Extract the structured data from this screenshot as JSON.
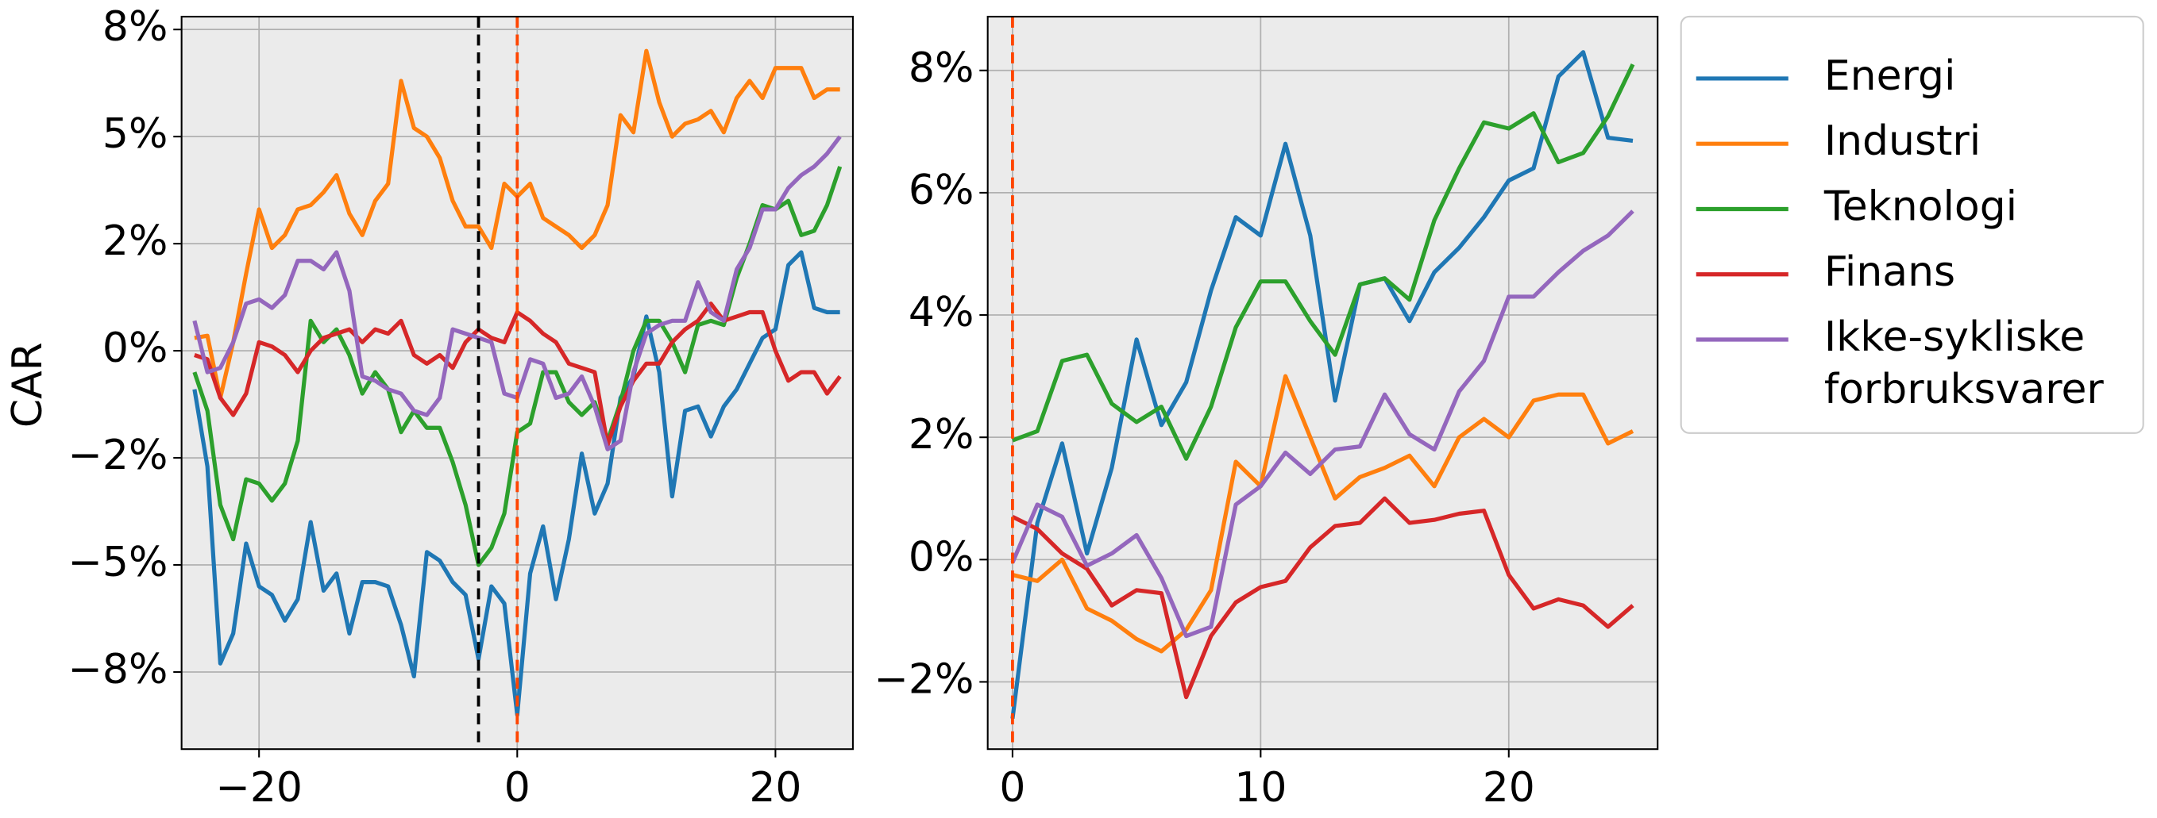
{
  "chart_data": [
    {
      "type": "line",
      "ylabel": "CAR",
      "x": [
        -25,
        -24,
        -23,
        -22,
        -21,
        -20,
        -19,
        -18,
        -17,
        -16,
        -15,
        -14,
        -13,
        -12,
        -11,
        -10,
        -9,
        -8,
        -7,
        -6,
        -5,
        -4,
        -3,
        -2,
        -1,
        0,
        1,
        2,
        3,
        4,
        5,
        6,
        7,
        8,
        9,
        10,
        11,
        12,
        13,
        14,
        15,
        16,
        17,
        18,
        19,
        20,
        21,
        22,
        23,
        24,
        25
      ],
      "series": [
        {
          "color": "#1f77b4",
          "values": [
            -0.9,
            -2.7,
            -7.3,
            -6.6,
            -4.5,
            -5.5,
            -5.7,
            -6.3,
            -5.8,
            -4.0,
            -5.6,
            -5.2,
            -6.6,
            -5.4,
            -5.4,
            -5.5,
            -6.4,
            -7.6,
            -4.7,
            -4.9,
            -5.4,
            -5.7,
            -7.2,
            -5.5,
            -5.9,
            -8.5,
            -5.2,
            -4.1,
            -5.8,
            -4.4,
            -2.4,
            -3.8,
            -3.1,
            -1.1,
            -0.6,
            0.8,
            -0.5,
            -3.4,
            -1.4,
            -1.3,
            -2.0,
            -1.3,
            -0.9,
            -0.3,
            0.3,
            0.5,
            2.0,
            2.3,
            1.0,
            0.9,
            0.9
          ]
        },
        {
          "color": "#ff7f0e",
          "values": [
            0.3,
            0.35,
            -1.1,
            0.2,
            1.8,
            3.3,
            2.4,
            2.7,
            3.3,
            3.4,
            3.7,
            4.1,
            3.2,
            2.7,
            3.5,
            3.9,
            6.3,
            5.2,
            5.0,
            4.5,
            3.5,
            2.9,
            2.9,
            2.4,
            3.9,
            3.6,
            3.9,
            3.1,
            2.9,
            2.7,
            2.4,
            2.7,
            3.4,
            5.5,
            5.1,
            7.0,
            5.8,
            5.0,
            5.3,
            5.4,
            5.6,
            5.1,
            5.9,
            6.3,
            5.9,
            6.6,
            6.6,
            6.6,
            5.9,
            6.1,
            6.1
          ]
        },
        {
          "color": "#2ca02c",
          "values": [
            -0.5,
            -1.4,
            -3.6,
            -4.4,
            -3.0,
            -3.1,
            -3.5,
            -3.1,
            -2.1,
            0.7,
            0.2,
            0.5,
            -0.1,
            -1.0,
            -0.5,
            -0.9,
            -1.9,
            -1.4,
            -1.8,
            -1.8,
            -2.6,
            -3.6,
            -5.0,
            -4.6,
            -3.8,
            -1.9,
            -1.7,
            -0.5,
            -0.5,
            -1.2,
            -1.5,
            -1.2,
            -2.1,
            -1.2,
            0.0,
            0.7,
            0.7,
            0.2,
            -0.5,
            0.6,
            0.7,
            0.6,
            1.7,
            2.5,
            3.4,
            3.3,
            3.5,
            2.7,
            2.8,
            3.4,
            4.3
          ]
        },
        {
          "color": "#d62728",
          "values": [
            -0.1,
            -0.2,
            -1.1,
            -1.5,
            -1.0,
            0.2,
            0.1,
            -0.1,
            -0.5,
            0.0,
            0.3,
            0.4,
            0.5,
            0.2,
            0.5,
            0.4,
            0.7,
            -0.1,
            -0.3,
            -0.1,
            -0.4,
            0.2,
            0.5,
            0.3,
            0.2,
            0.9,
            0.7,
            0.4,
            0.2,
            -0.3,
            -0.4,
            -0.5,
            -2.2,
            -1.3,
            -0.7,
            -0.3,
            -0.3,
            0.2,
            0.5,
            0.7,
            1.1,
            0.7,
            0.8,
            0.9,
            0.9,
            0.0,
            -0.7,
            -0.5,
            -0.5,
            -1.0,
            -0.6
          ]
        },
        {
          "color": "#9467bd",
          "values": [
            0.7,
            -0.5,
            -0.4,
            0.2,
            1.1,
            1.2,
            1.0,
            1.3,
            2.1,
            2.1,
            1.9,
            2.3,
            1.4,
            -0.6,
            -0.7,
            -0.9,
            -1.0,
            -1.4,
            -1.5,
            -1.1,
            0.5,
            0.4,
            0.3,
            0.2,
            -1.0,
            -1.1,
            -0.2,
            -0.3,
            -1.1,
            -1.0,
            -0.6,
            -1.3,
            -2.3,
            -2.1,
            -0.5,
            0.4,
            0.6,
            0.7,
            0.7,
            1.6,
            0.9,
            0.7,
            1.9,
            2.4,
            3.3,
            3.3,
            3.8,
            4.1,
            4.3,
            4.6,
            5.0
          ]
        }
      ],
      "vlines": [
        {
          "x": -3,
          "color": "#000000"
        },
        {
          "x": 0,
          "color": "#ff4500"
        }
      ],
      "line_style": "dashed",
      "xlim": [
        -26,
        26
      ],
      "xticks": [
        {
          "value": -20,
          "label": "−20"
        },
        0,
        20
      ],
      "ylim": [
        -9.3,
        7.8
      ],
      "yticks": [
        {
          "value": -7.5,
          "label": "−8%"
        },
        {
          "value": -5,
          "label": "−5%"
        },
        {
          "value": -2.5,
          "label": "−2%"
        },
        {
          "value": 0,
          "label": "0%"
        },
        {
          "value": 2.5,
          "label": "2%"
        },
        {
          "value": 5,
          "label": "5%"
        },
        {
          "value": 7.5,
          "label": "8%"
        }
      ],
      "grid": true
    },
    {
      "type": "line",
      "legend": "outside right",
      "x": [
        0,
        1,
        2,
        3,
        4,
        5,
        6,
        7,
        8,
        9,
        10,
        11,
        12,
        13,
        14,
        15,
        16,
        17,
        18,
        19,
        20,
        21,
        22,
        23,
        24,
        25
      ],
      "series": [
        {
          "name": "Energi",
          "color": "#1f77b4",
          "values": [
            -2.6,
            0.6,
            1.9,
            0.1,
            1.5,
            3.6,
            2.2,
            2.9,
            4.4,
            5.6,
            5.3,
            6.8,
            5.3,
            2.6,
            4.5,
            4.6,
            3.9,
            4.7,
            5.1,
            5.6,
            6.2,
            6.4,
            7.9,
            8.3,
            6.9,
            6.85
          ]
        },
        {
          "name": "Industri",
          "color": "#ff7f0e",
          "values": [
            -0.25,
            -0.35,
            0.0,
            -0.8,
            -1.0,
            -1.3,
            -1.5,
            -1.15,
            -0.5,
            1.6,
            1.2,
            3.0,
            2.0,
            1.0,
            1.35,
            1.5,
            1.7,
            1.2,
            2.0,
            2.3,
            2.0,
            2.6,
            2.7,
            2.7,
            1.9,
            2.1
          ]
        },
        {
          "name": "Teknologi",
          "color": "#2ca02c",
          "values": [
            1.95,
            2.1,
            3.25,
            3.35,
            2.55,
            2.25,
            2.5,
            1.65,
            2.5,
            3.8,
            4.55,
            4.55,
            3.9,
            3.35,
            4.5,
            4.6,
            4.25,
            5.55,
            6.4,
            7.15,
            7.05,
            7.3,
            6.5,
            6.65,
            7.25,
            8.1
          ]
        },
        {
          "name": "Finans",
          "color": "#d62728",
          "values": [
            0.7,
            0.5,
            0.1,
            -0.15,
            -0.75,
            -0.5,
            -0.55,
            -2.25,
            -1.25,
            -0.7,
            -0.45,
            -0.35,
            0.2,
            0.55,
            0.6,
            1.0,
            0.6,
            0.65,
            0.75,
            0.8,
            -0.25,
            -0.8,
            -0.65,
            -0.75,
            -1.1,
            -0.75
          ]
        },
        {
          "name": "Ikke-sykliske\nforbruksvarer",
          "color": "#9467bd",
          "values": [
            -0.05,
            0.9,
            0.7,
            -0.1,
            0.1,
            0.4,
            -0.3,
            -1.25,
            -1.1,
            0.9,
            1.2,
            1.75,
            1.4,
            1.8,
            1.85,
            2.7,
            2.05,
            1.8,
            2.75,
            3.25,
            4.3,
            4.3,
            4.7,
            5.05,
            5.3,
            5.7
          ]
        }
      ],
      "vlines": [
        {
          "x": 0,
          "color": "#ff4500"
        }
      ],
      "line_style": "dashed",
      "xlim": [
        -1,
        26
      ],
      "xticks": [
        0,
        10,
        20
      ],
      "ylim": [
        -3.1,
        8.88
      ],
      "yticks": [
        {
          "value": -2,
          "label": "−2%"
        },
        {
          "value": 0,
          "label": "0%"
        },
        {
          "value": 2,
          "label": "2%"
        },
        {
          "value": 4,
          "label": "4%"
        },
        {
          "value": 6,
          "label": "6%"
        },
        {
          "value": 8,
          "label": "8%"
        }
      ],
      "grid": true
    }
  ]
}
